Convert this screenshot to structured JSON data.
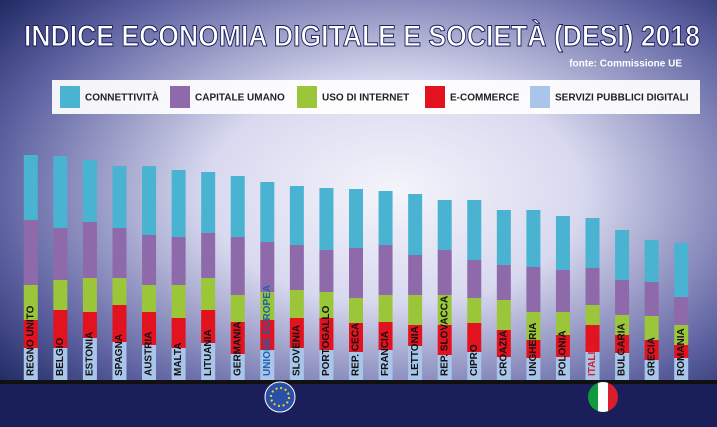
{
  "chart_data": {
    "type": "stacked_bar",
    "title": "INDICE ECONOMIA DIGITALE E SOCIETÀ (DESI) 2018",
    "source": "fonte: Commissione UE",
    "categories": [
      "REGNO UNITO",
      "BELGIO",
      "ESTONIA",
      "SPAGNA",
      "AUSTRIA",
      "MALTA",
      "LITUANIA",
      "GERMANIA",
      "UNIONE EUROPEA",
      "SLOVENIA",
      "PORTOGALLO",
      "REP. CECA",
      "FRANCIA",
      "LETTONIA",
      "REP. SLOVACCA",
      "CIPRO",
      "CROAZIA",
      "UNGHERIA",
      "POLONIA",
      "ITALIA",
      "BULGARIA",
      "GRECIA",
      "ROMANIA"
    ],
    "category_label_colors": [
      "#111",
      "#111",
      "#111",
      "#111",
      "#111",
      "#111",
      "#111",
      "#111",
      "#1f5fb0",
      "#111",
      "#111",
      "#111",
      "#111",
      "#111",
      "#111",
      "#111",
      "#111",
      "#111",
      "#111",
      "#d81e2c",
      "#111",
      "#111",
      "#111"
    ],
    "ylim": [
      0,
      240
    ],
    "legend": "top",
    "series": [
      {
        "name": "SERVIZI PUBBLICI DIGITALI",
        "color": "#a9c6ea",
        "values": [
          32,
          32,
          42,
          38,
          35,
          32,
          37,
          26,
          30,
          32,
          30,
          28,
          30,
          34,
          25,
          28,
          23,
          22,
          23,
          28,
          27,
          20,
          22
        ]
      },
      {
        "name": "E-COMMERCE",
        "color": "#e3121f",
        "values": [
          28,
          38,
          26,
          37,
          33,
          30,
          33,
          32,
          30,
          30,
          32,
          29,
          28,
          21,
          30,
          29,
          27,
          18,
          22,
          27,
          18,
          20,
          13
        ]
      },
      {
        "name": "USO DI INTERNET",
        "color": "#9bc63a",
        "values": [
          35,
          30,
          34,
          27,
          27,
          33,
          32,
          27,
          28,
          28,
          26,
          25,
          27,
          30,
          30,
          25,
          30,
          28,
          23,
          20,
          20,
          24,
          20
        ]
      },
      {
        "name": "CAPITALE UMANO",
        "color": "#8f6aab",
        "values": [
          65,
          52,
          56,
          50,
          50,
          48,
          45,
          58,
          50,
          45,
          42,
          50,
          50,
          40,
          45,
          38,
          35,
          45,
          42,
          37,
          35,
          34,
          28
        ]
      },
      {
        "name": "CONNETTIVITÀ",
        "color": "#4ab3d1",
        "values": [
          65,
          72,
          62,
          62,
          69,
          67,
          61,
          61,
          60,
          59,
          62,
          59,
          54,
          61,
          50,
          60,
          55,
          57,
          54,
          50,
          50,
          42,
          54
        ]
      }
    ]
  }
}
